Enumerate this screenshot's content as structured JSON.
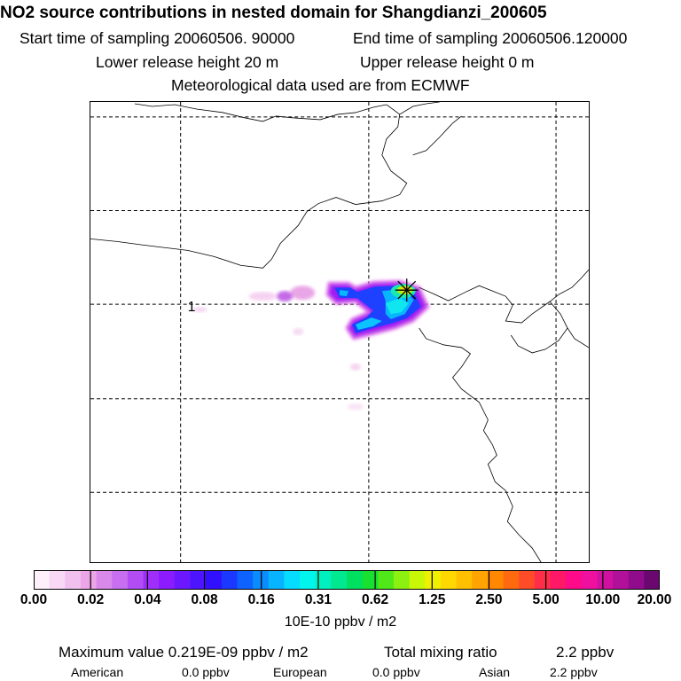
{
  "header": {
    "title": "NO2 source contributions in nested domain for Shangdianzi_200605",
    "start_time": "Start time of sampling 20060506. 90000",
    "end_time": "End time of sampling 20060506.120000",
    "lower_release": "Lower release height   20 m",
    "upper_release": "Upper release height    0 m",
    "met_note": "Meteorological data used are from ECMWF"
  },
  "map": {
    "grid_label": "1",
    "station_marker": "star-icon",
    "station_name": "Shangdianzi"
  },
  "chart_data": {
    "type": "heatmap",
    "title": "NO2 source contributions in nested domain for Shangdianzi_200605",
    "colorbar": {
      "ticks": [
        "0.00",
        "0.02",
        "0.04",
        "0.08",
        "0.16",
        "0.31",
        "0.62",
        "1.25",
        "2.50",
        "5.00",
        "10.00",
        "20.00"
      ],
      "unit": "10E-10 ppbv / m2",
      "colors": [
        "#fdf0fb",
        "#f8d8f4",
        "#f2c0ee",
        "#eca6e8",
        "#d889ea",
        "#c86ef0",
        "#b24df6",
        "#a02efb",
        "#8a1cff",
        "#6b18ff",
        "#4d14ff",
        "#3010ff",
        "#1a38ff",
        "#0e62ff",
        "#0a8cff",
        "#08b4ff",
        "#05dcff",
        "#02f5ec",
        "#00f0c0",
        "#00e890",
        "#00e060",
        "#18e030",
        "#50e818",
        "#8cf010",
        "#c8f808",
        "#f0f000",
        "#ffd800",
        "#ffc000",
        "#ffa400",
        "#ff8800",
        "#ff6a10",
        "#ff4c28",
        "#ff2e48",
        "#ff1868",
        "#ff0a88",
        "#f010a0",
        "#d010a0",
        "#b0109a",
        "#900c8c",
        "#6a0870"
      ]
    },
    "summary": {
      "max_value": "Maximum value  0.219E-09 ppbv / m2",
      "total_mixing": "Total mixing ratio",
      "total_value": "2.2 ppbv",
      "american_label": "American",
      "american_value": "0.0 ppbv",
      "european_label": "European",
      "european_value": "0.0 ppbv",
      "asian_label": "Asian",
      "asian_value": "2.2 ppbv"
    }
  }
}
